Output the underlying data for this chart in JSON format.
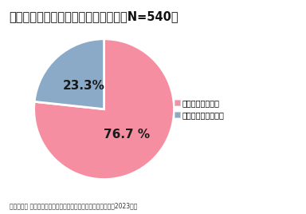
{
  "title": "自宅での食事にメリットを感じるか（N=540）",
  "slices": [
    76.7,
    23.3
  ],
  "labels": [
    "メリットを感じる",
    "メリットを感じない"
  ],
  "colors": [
    "#F48EA0",
    "#8AAAC8"
  ],
  "text_labels": [
    "76.7 %",
    "23.3%"
  ],
  "legend_colors": [
    "#F48EA0",
    "#8AAAC8"
  ],
  "footnote": "積水ハウス 住生活研究所調査「物価上昇による暮らしの調査（2023）」",
  "background_color": "#ffffff",
  "start_angle": 90,
  "title_fontsize": 10.5,
  "label_fontsize": 11,
  "legend_fontsize": 7,
  "footnote_fontsize": 5.5
}
